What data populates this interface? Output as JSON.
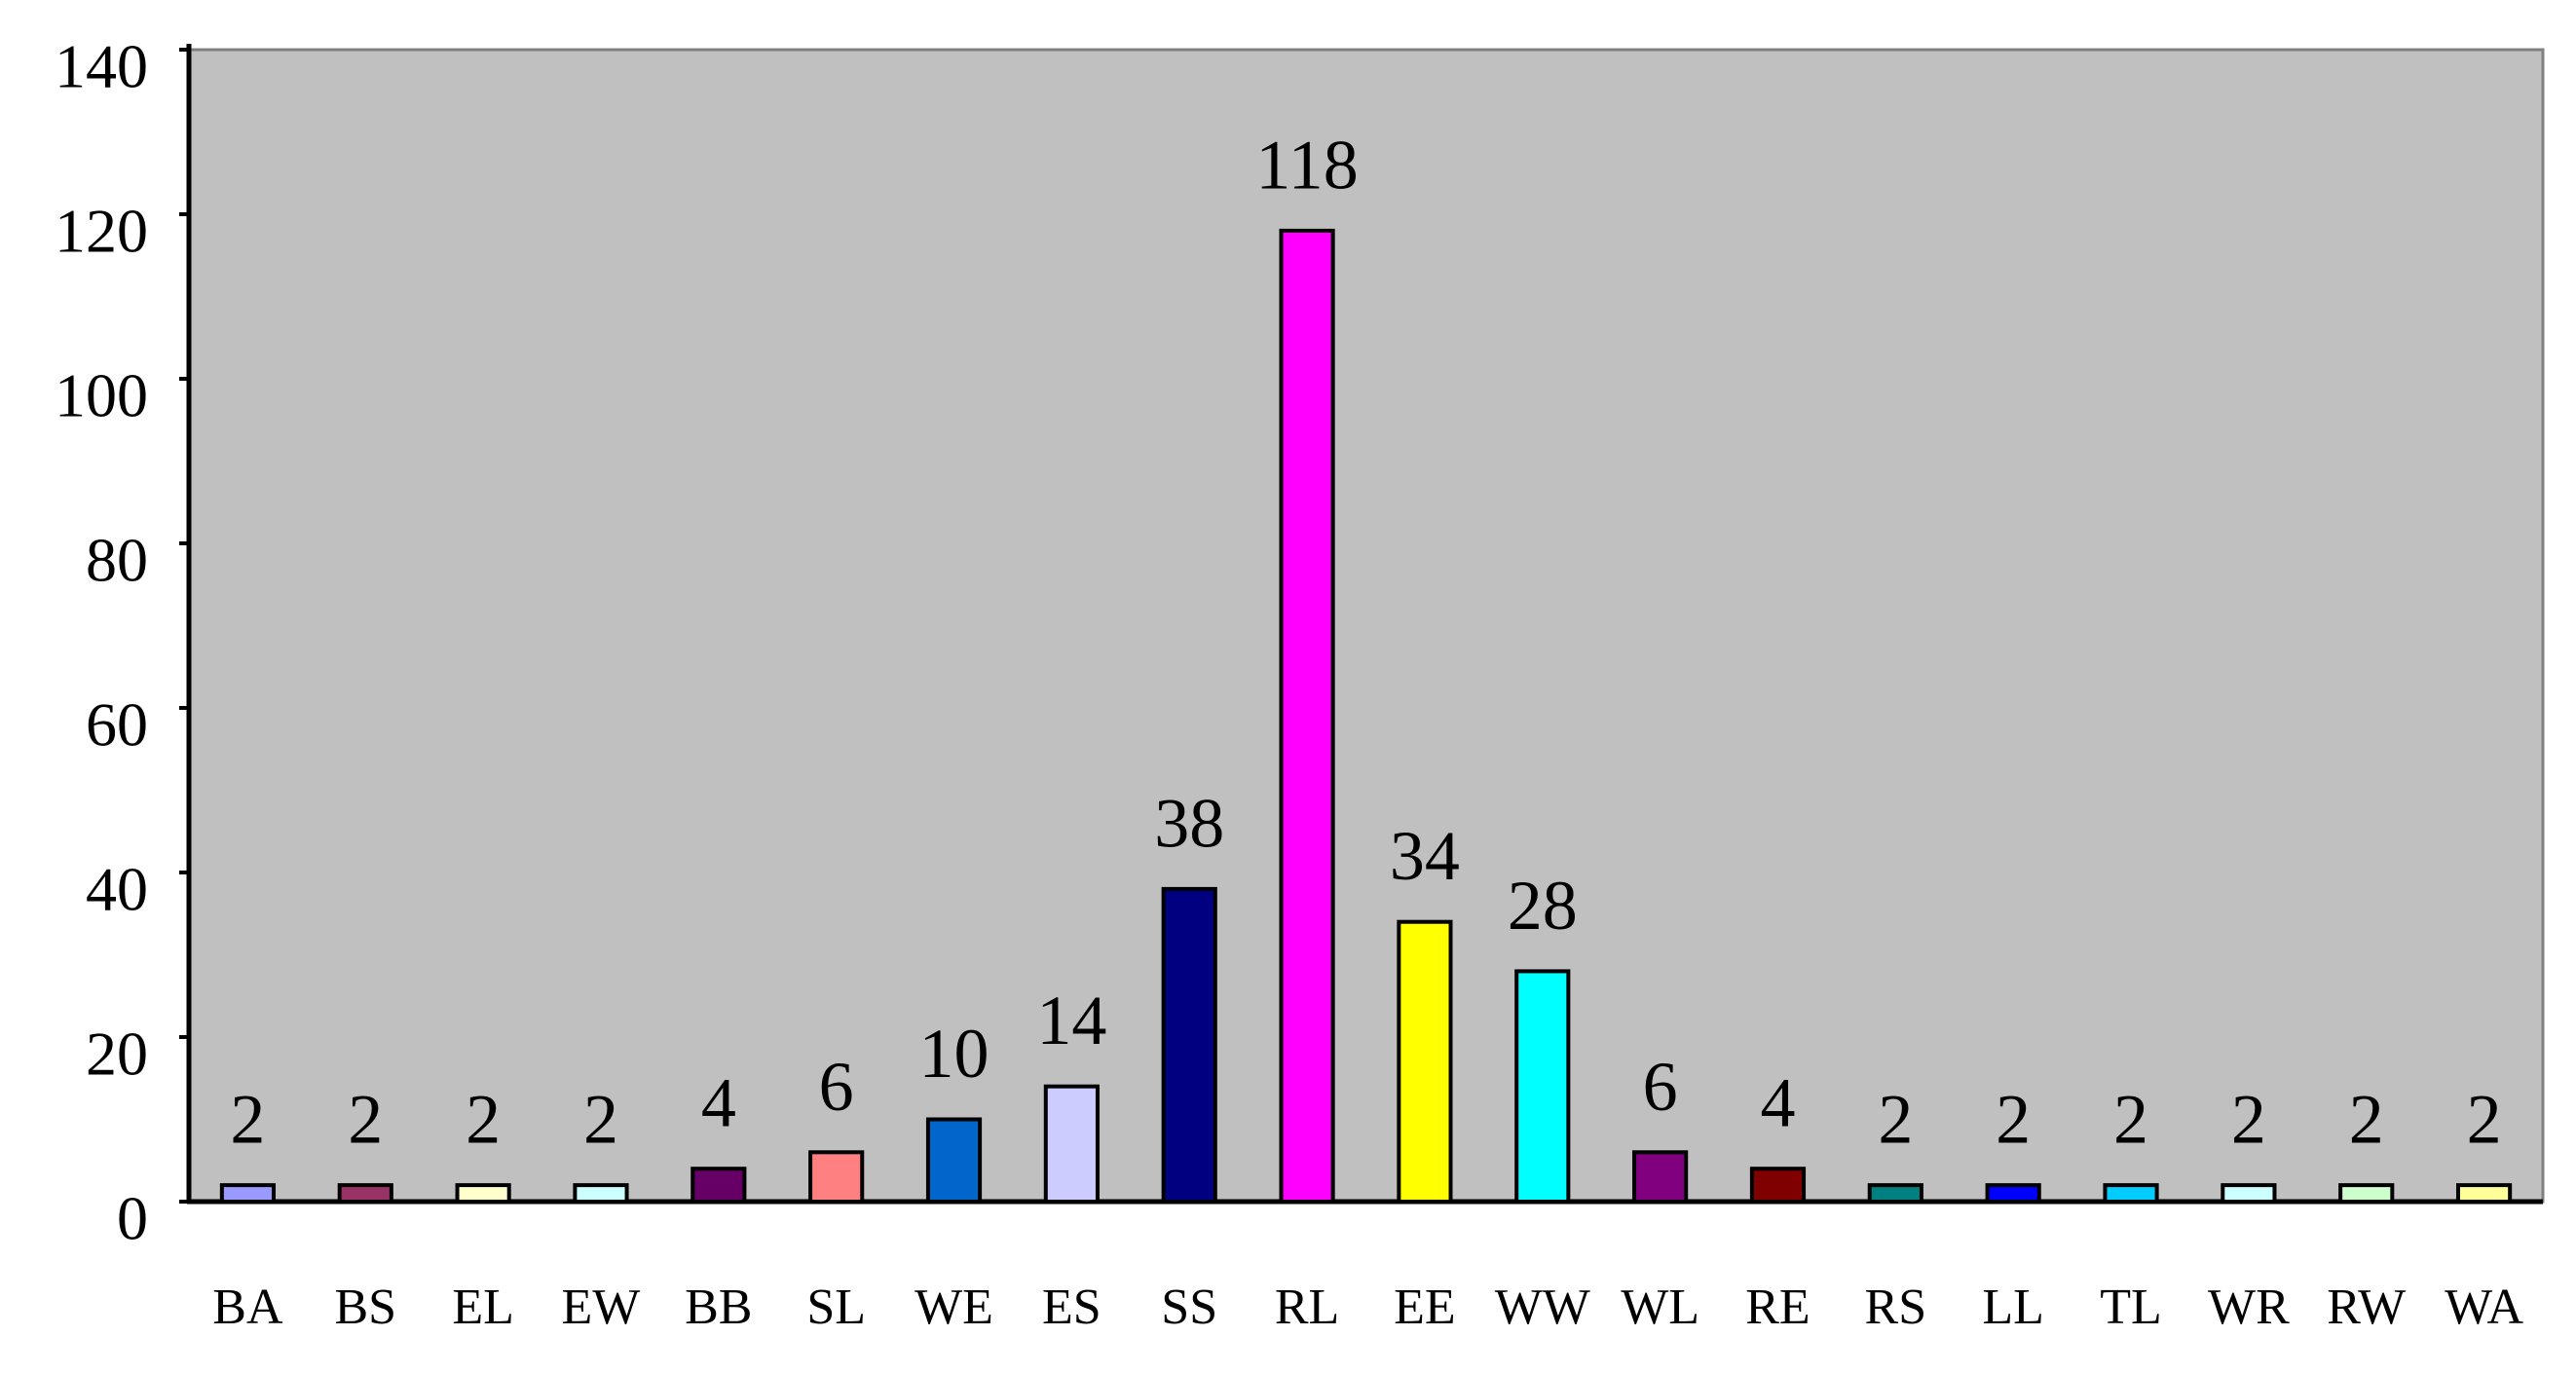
{
  "chart_data": {
    "type": "bar",
    "categories": [
      "BA",
      "BS",
      "EL",
      "EW",
      "BB",
      "SL",
      "WE",
      "ES",
      "SS",
      "RL",
      "EE",
      "WW",
      "WL",
      "RE",
      "RS",
      "LL",
      "TL",
      "WR",
      "RW",
      "WA"
    ],
    "values": [
      2,
      2,
      2,
      2,
      4,
      6,
      10,
      14,
      38,
      118,
      34,
      28,
      6,
      4,
      2,
      2,
      2,
      2,
      2,
      2
    ],
    "colors": [
      "#9999ff",
      "#993366",
      "#ffffcc",
      "#ccffff",
      "#660066",
      "#ff8080",
      "#0066cc",
      "#ccccff",
      "#000080",
      "#ff00ff",
      "#ffff00",
      "#00ffff",
      "#800080",
      "#800000",
      "#008080",
      "#0000ff",
      "#00ccff",
      "#ccffff",
      "#ccffcc",
      "#ffff99"
    ],
    "ylim": [
      0,
      140
    ],
    "yticks": [
      0,
      20,
      40,
      60,
      80,
      100,
      120,
      140
    ],
    "grid": false
  }
}
